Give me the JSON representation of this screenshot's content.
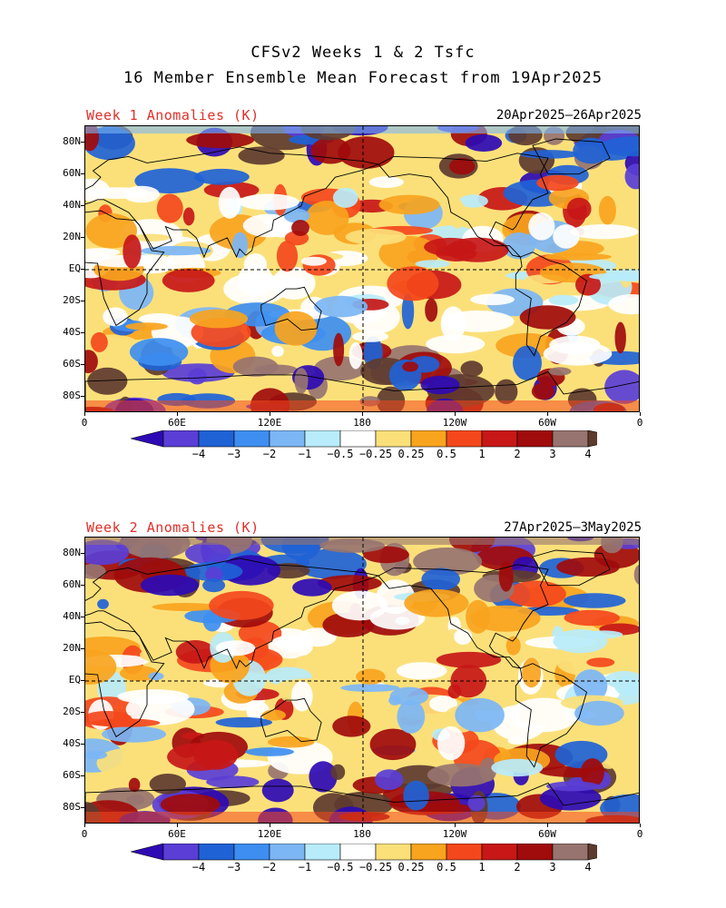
{
  "title_line1": "CFSv2 Weeks 1 & 2 Tsfc",
  "title_line2": "16 Member Ensemble Mean Forecast from 19Apr2025",
  "panels": [
    {
      "label": "Week 1 Anomalies (K)",
      "date_range": "20Apr2025—26Apr2025"
    },
    {
      "label": "Week 2 Anomalies (K)",
      "date_range": "27Apr2025—3May2025"
    }
  ],
  "lat_labels": [
    "80N",
    "60N",
    "40N",
    "20N",
    "EQ",
    "20S",
    "40S",
    "60S",
    "80S"
  ],
  "lon_labels": [
    "0",
    "60E",
    "120E",
    "180",
    "120W",
    "60W",
    "0"
  ],
  "colorbar": {
    "labels": [
      "−4",
      "−3",
      "−2",
      "−1",
      "−0.5",
      "−0.25",
      "0.25",
      "0.5",
      "1",
      "2",
      "3",
      "4"
    ],
    "colors": [
      "#2e0ab4",
      "#5a3ed6",
      "#1f62d6",
      "#3d8ef0",
      "#7cb6f5",
      "#b8ecfa",
      "#ffffff",
      "#fbe07a",
      "#f9a41e",
      "#f4481c",
      "#c71717",
      "#a00b0b",
      "#977470",
      "#5e3b2f"
    ],
    "units": "K"
  }
}
